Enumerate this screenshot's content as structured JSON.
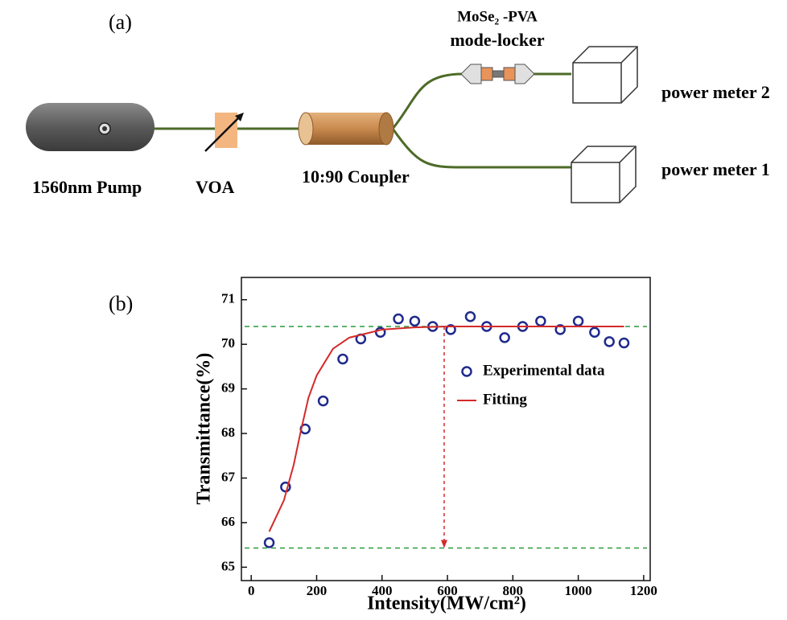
{
  "diagram": {
    "panel_label": "(a)",
    "pump": "1560nm Pump",
    "voa": "VOA",
    "coupler": "10:90 Coupler",
    "mode_locker_line1": "MoSe₂ -PVA",
    "mode_locker_line2": "mode-locker",
    "meter2": "power meter 2",
    "meter1": "power meter 1"
  },
  "chart_data": {
    "type": "scatter",
    "panel_label": "(b)",
    "x_label": "Intensity(MW/cm²)",
    "y_label": "Transmittance(%)",
    "xlim": [
      -30,
      1220
    ],
    "ylim": [
      64.7,
      71.5
    ],
    "xticks": [
      0,
      200,
      400,
      600,
      800,
      1000,
      1200
    ],
    "yticks": [
      65,
      66,
      67,
      68,
      69,
      70,
      71
    ],
    "legend": "right",
    "series": [
      {
        "name": "Experimental data",
        "color": "#1f2a8c",
        "x": [
          55,
          105,
          165,
          220,
          280,
          335,
          395,
          450,
          500,
          555,
          610,
          670,
          720,
          775,
          830,
          885,
          945,
          1000,
          1050,
          1095,
          1140
        ],
        "values": [
          65.55,
          66.8,
          68.1,
          68.73,
          69.67,
          70.12,
          70.27,
          70.57,
          70.52,
          70.4,
          70.33,
          70.62,
          70.4,
          70.15,
          70.4,
          70.52,
          70.33,
          70.52,
          70.27,
          70.06,
          70.03
        ]
      },
      {
        "name": "Fitting",
        "color": "#d42a2a",
        "kind": "line",
        "x": [
          55,
          100,
          130,
          150,
          175,
          200,
          250,
          300,
          400,
          500,
          600,
          800,
          1000,
          1140
        ],
        "values": [
          65.8,
          66.5,
          67.3,
          68.0,
          68.8,
          69.3,
          69.9,
          70.15,
          70.33,
          70.38,
          70.4,
          70.4,
          70.4,
          70.4
        ]
      }
    ],
    "hlines": [
      70.4,
      65.43
    ],
    "hline_color": "#2a9a3a",
    "vline_x": 590,
    "vline_color": "#d42a2a"
  }
}
